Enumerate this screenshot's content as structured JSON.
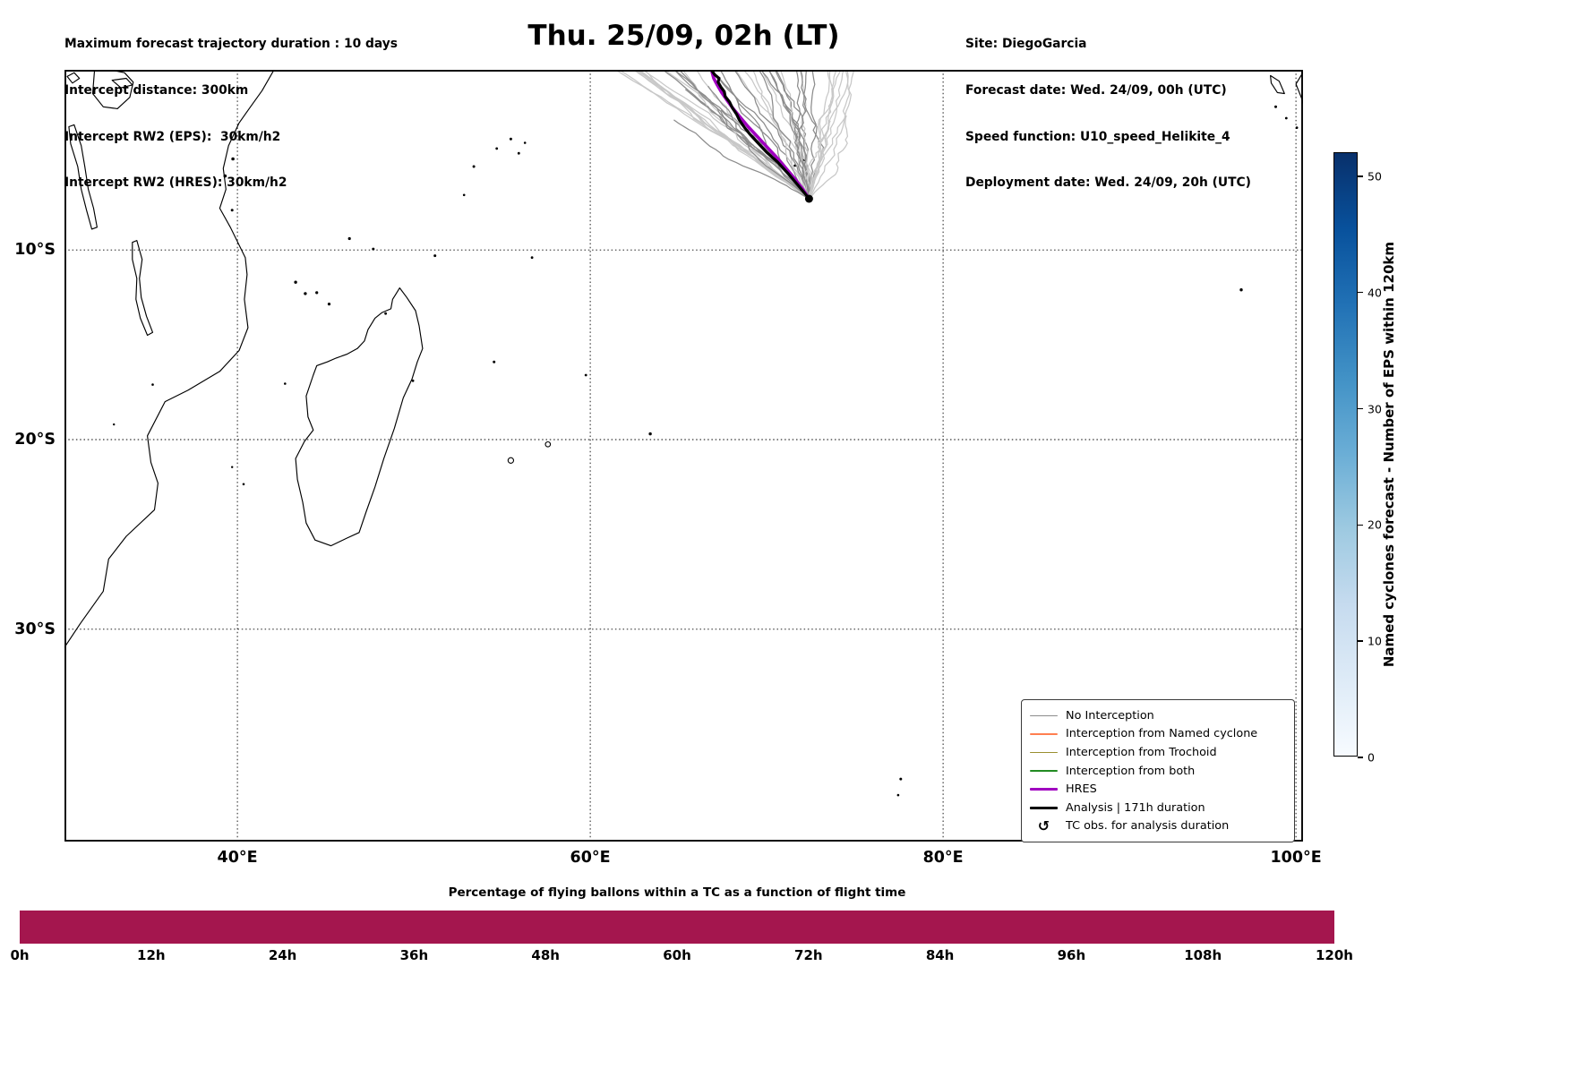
{
  "header": {
    "left_lines": [
      "Maximum forecast trajectory duration : 10 days",
      "Intercept distance: 300km",
      "Intercept RW2 (EPS):  30km/h2",
      "Intercept RW2 (HRES): 30km/h2"
    ],
    "title": "Thu. 25/09, 02h (LT)",
    "right_lines": [
      "Site: DiegoGarcia",
      "Forecast date: Wed. 24/09, 00h (UTC)",
      "Speed function: U10_speed_Helikite_4",
      "Deployment date: Wed. 24/09, 20h (UTC)"
    ]
  },
  "legend": {
    "items": [
      {
        "label": "No Interception",
        "type": "line",
        "color": "#8C8C8C",
        "width": 1.6
      },
      {
        "label": "Interception from Named cyclone",
        "type": "line",
        "color": "#FF7F50",
        "width": 1.6
      },
      {
        "label": "Interception from Trochoid",
        "type": "line",
        "color": "#9A8F2F",
        "width": 1.6
      },
      {
        "label": "Interception from both",
        "type": "line",
        "color": "#228B22",
        "width": 1.6
      },
      {
        "label": "HRES",
        "type": "line",
        "color": "#A000C0",
        "width": 3.6
      },
      {
        "label": "Analysis | 171h duration",
        "type": "line",
        "color": "#000000",
        "width": 3.4
      },
      {
        "label": "TC obs. for analysis duration",
        "type": "symbol",
        "symbol": "↺",
        "color": "#000000"
      }
    ]
  },
  "colorbar": {
    "label": "Named cyclones forecast - Number of EPS within 120km",
    "ticks": [
      0,
      10,
      20,
      30,
      40,
      50
    ],
    "vmin": 0,
    "vmax": 52,
    "stops": [
      "#f7fbff",
      "#deebf7",
      "#c6dbef",
      "#9ecae1",
      "#6baed6",
      "#4292c6",
      "#2171b5",
      "#08519c",
      "#08306b"
    ]
  },
  "bottom_chart": {
    "title": "Percentage of flying ballons within a TC as a function of flight time",
    "tick_labels": [
      "0h",
      "12h",
      "24h",
      "36h",
      "48h",
      "60h",
      "72h",
      "84h",
      "96h",
      "108h",
      "120h"
    ],
    "bar_color": "#A4164E",
    "value_percent": 100
  },
  "chart_data": {
    "type": "line",
    "title": "Thu. 25/09, 02h (LT)",
    "map_extent": {
      "lon": [
        30.2,
        100.4
      ],
      "lat": [
        -41.2,
        -0.5
      ]
    },
    "grid": {
      "lon": [
        40,
        60,
        80,
        100
      ],
      "lat": [
        -10,
        -20,
        -30
      ],
      "style": "dotted"
    },
    "xtick_labels": [
      "40°E",
      "60°E",
      "80°E",
      "100°E"
    ],
    "ytick_labels": [
      "10°S",
      "20°S",
      "30°S"
    ],
    "deployment_site": {
      "name": "DiegoGarcia",
      "lon": 72.4,
      "lat": -7.3
    },
    "analysis_track": {
      "color": "#000000",
      "width": 3.2,
      "points": [
        [
          72.4,
          -7.3
        ],
        [
          72.15,
          -7.0
        ],
        [
          71.7,
          -6.5
        ],
        [
          71.2,
          -5.95
        ],
        [
          70.6,
          -5.35
        ],
        [
          70.0,
          -4.85
        ],
        [
          69.5,
          -4.35
        ],
        [
          69.05,
          -3.9
        ],
        [
          68.75,
          -3.55
        ],
        [
          68.45,
          -3.15
        ],
        [
          68.3,
          -2.85
        ],
        [
          68.05,
          -2.5
        ],
        [
          67.9,
          -2.2
        ],
        [
          67.65,
          -1.9
        ],
        [
          67.6,
          -1.65
        ],
        [
          67.4,
          -1.4
        ],
        [
          67.25,
          -1.15
        ],
        [
          67.3,
          -0.95
        ],
        [
          67.05,
          -0.75
        ],
        [
          66.9,
          -0.55
        ],
        [
          66.8,
          -0.3
        ]
      ]
    },
    "hres_track": {
      "color": "#A000C0",
      "width": 3.6,
      "points": [
        [
          72.4,
          -7.3
        ],
        [
          72.05,
          -6.8
        ],
        [
          71.6,
          -6.25
        ],
        [
          71.1,
          -5.7
        ],
        [
          70.55,
          -5.1
        ],
        [
          70.0,
          -4.55
        ],
        [
          69.45,
          -4.0
        ],
        [
          68.95,
          -3.5
        ],
        [
          68.5,
          -3.0
        ],
        [
          68.1,
          -2.55
        ],
        [
          67.75,
          -2.1
        ],
        [
          67.45,
          -1.7
        ],
        [
          67.2,
          -1.3
        ],
        [
          67.0,
          -0.95
        ],
        [
          66.9,
          -0.6
        ],
        [
          66.95,
          -0.3
        ],
        [
          67.1,
          -0.05
        ]
      ]
    },
    "ensemble": {
      "count": 50,
      "seed": 11,
      "start": [
        72.4,
        -7.3
      ],
      "end_lon_range": [
        61,
        75.5
      ],
      "short_fraction": 0.13,
      "color_dark": "#8C8C8C",
      "color_light": "#C8C8C8",
      "width": 1.25
    },
    "coastlines": {
      "open_paths": [
        [
          [
            42.2,
            -0.3
          ],
          [
            41.4,
            -1.6
          ],
          [
            40.7,
            -2.5
          ],
          [
            40.1,
            -3.3
          ],
          [
            39.5,
            -4.5
          ],
          [
            39.2,
            -5.7
          ],
          [
            39.35,
            -6.8
          ],
          [
            39.0,
            -7.8
          ],
          [
            39.6,
            -8.8
          ],
          [
            40.45,
            -10.4
          ],
          [
            40.55,
            -11.3
          ],
          [
            40.4,
            -12.6
          ],
          [
            40.6,
            -14.1
          ],
          [
            40.1,
            -15.3
          ],
          [
            39.0,
            -16.4
          ],
          [
            37.2,
            -17.4
          ],
          [
            35.9,
            -18.0
          ],
          [
            34.9,
            -19.8
          ],
          [
            35.1,
            -21.2
          ],
          [
            35.5,
            -22.3
          ],
          [
            35.3,
            -23.7
          ],
          [
            33.7,
            -25.1
          ],
          [
            32.7,
            -26.3
          ],
          [
            32.4,
            -28.0
          ],
          [
            31.1,
            -29.7
          ],
          [
            30.1,
            -31.1
          ]
        ],
        [
          [
            100.45,
            -0.55
          ],
          [
            100.0,
            -1.25
          ],
          [
            100.3,
            -1.95
          ],
          [
            100.45,
            -2.35
          ]
        ]
      ],
      "closed_paths": [
        [
          [
            49.2,
            -12.0
          ],
          [
            49.6,
            -12.5
          ],
          [
            50.1,
            -13.2
          ],
          [
            50.3,
            -14.0
          ],
          [
            50.5,
            -15.2
          ],
          [
            50.2,
            -15.9
          ],
          [
            49.9,
            -16.8
          ],
          [
            49.4,
            -17.8
          ],
          [
            48.9,
            -19.4
          ],
          [
            48.3,
            -21.0
          ],
          [
            47.8,
            -22.5
          ],
          [
            47.3,
            -23.8
          ],
          [
            46.9,
            -24.9
          ],
          [
            46.2,
            -25.2
          ],
          [
            45.3,
            -25.6
          ],
          [
            44.4,
            -25.3
          ],
          [
            43.9,
            -24.4
          ],
          [
            43.7,
            -23.3
          ],
          [
            43.4,
            -22.1
          ],
          [
            43.3,
            -21.0
          ],
          [
            43.8,
            -20.1
          ],
          [
            44.3,
            -19.5
          ],
          [
            44.0,
            -18.8
          ],
          [
            43.9,
            -17.7
          ],
          [
            44.3,
            -16.6
          ],
          [
            44.5,
            -16.1
          ],
          [
            45.1,
            -15.9
          ],
          [
            45.6,
            -15.7
          ],
          [
            46.2,
            -15.5
          ],
          [
            46.8,
            -15.2
          ],
          [
            47.2,
            -14.8
          ],
          [
            47.4,
            -14.2
          ],
          [
            47.8,
            -13.6
          ],
          [
            48.2,
            -13.3
          ],
          [
            48.7,
            -13.1
          ],
          [
            48.8,
            -12.6
          ],
          [
            49.0,
            -12.3
          ]
        ],
        [
          [
            31.9,
            -0.55
          ],
          [
            32.8,
            -0.5
          ],
          [
            33.6,
            -0.65
          ],
          [
            34.1,
            -1.15
          ],
          [
            33.9,
            -1.95
          ],
          [
            33.2,
            -2.55
          ],
          [
            32.4,
            -2.45
          ],
          [
            31.8,
            -1.75
          ]
        ],
        [
          [
            30.75,
            -3.4
          ],
          [
            31.15,
            -4.5
          ],
          [
            31.35,
            -5.6
          ],
          [
            31.55,
            -6.8
          ],
          [
            31.85,
            -7.8
          ],
          [
            32.05,
            -8.8
          ],
          [
            31.75,
            -8.9
          ],
          [
            31.45,
            -7.9
          ],
          [
            31.15,
            -6.8
          ],
          [
            30.95,
            -5.6
          ],
          [
            30.55,
            -4.4
          ],
          [
            30.45,
            -3.5
          ]
        ],
        [
          [
            34.3,
            -9.5
          ],
          [
            34.6,
            -10.5
          ],
          [
            34.45,
            -11.5
          ],
          [
            34.55,
            -12.5
          ],
          [
            34.85,
            -13.5
          ],
          [
            35.2,
            -14.35
          ],
          [
            34.9,
            -14.5
          ],
          [
            34.5,
            -13.6
          ],
          [
            34.25,
            -12.6
          ],
          [
            34.3,
            -11.5
          ],
          [
            34.05,
            -10.5
          ],
          [
            34.05,
            -9.6
          ]
        ],
        [
          [
            32.9,
            -1.05
          ],
          [
            33.7,
            -0.95
          ],
          [
            34.05,
            -1.3
          ],
          [
            33.4,
            -1.45
          ]
        ],
        [
          [
            30.35,
            -0.85
          ],
          [
            30.75,
            -0.65
          ],
          [
            31.05,
            -0.95
          ],
          [
            30.65,
            -1.2
          ]
        ],
        [
          [
            98.55,
            -0.8
          ],
          [
            99.05,
            -1.1
          ],
          [
            99.35,
            -1.75
          ],
          [
            98.95,
            -1.7
          ],
          [
            98.6,
            -1.2
          ]
        ]
      ],
      "dots": [
        [
          43.3,
          -11.7,
          1.7
        ],
        [
          43.85,
          -12.3,
          1.7
        ],
        [
          44.5,
          -12.25,
          1.6
        ],
        [
          45.2,
          -12.85,
          1.6
        ],
        [
          46.35,
          -9.4,
          1.6
        ],
        [
          47.7,
          -9.95,
          1.5
        ],
        [
          51.2,
          -10.3,
          1.5
        ],
        [
          55.5,
          -4.15,
          1.5
        ],
        [
          53.4,
          -5.6,
          1.5
        ],
        [
          54.7,
          -4.65,
          1.4
        ],
        [
          55.95,
          -4.9,
          1.4
        ],
        [
          56.3,
          -4.35,
          1.3
        ],
        [
          52.85,
          -7.1,
          1.3
        ],
        [
          54.55,
          -15.9,
          1.5
        ],
        [
          59.75,
          -16.6,
          1.4
        ],
        [
          56.7,
          -10.4,
          1.4
        ],
        [
          57.6,
          -20.25,
          2.8
        ],
        [
          55.5,
          -21.1,
          3.1
        ],
        [
          63.4,
          -19.7,
          1.7
        ],
        [
          96.9,
          -12.1,
          1.7
        ],
        [
          77.6,
          -37.9,
          1.5
        ],
        [
          77.45,
          -38.75,
          1.3
        ],
        [
          71.6,
          -5.55,
          1.4
        ],
        [
          72.15,
          -5.25,
          1.4
        ],
        [
          98.85,
          -2.45,
          1.5
        ],
        [
          99.45,
          -3.05,
          1.4
        ],
        [
          100.05,
          -3.55,
          1.4
        ],
        [
          39.75,
          -5.2,
          1.8
        ],
        [
          39.3,
          -6.1,
          1.8
        ],
        [
          39.7,
          -7.9,
          1.5
        ],
        [
          48.4,
          -13.35,
          1.4
        ],
        [
          49.95,
          -16.9,
          1.4
        ],
        [
          42.7,
          -17.05,
          1.3
        ],
        [
          40.35,
          -22.35,
          1.3
        ],
        [
          39.7,
          -21.45,
          1.2
        ],
        [
          35.2,
          -17.1,
          1.3
        ],
        [
          33.0,
          -19.2,
          1.2
        ]
      ]
    },
    "bottom_bar": {
      "type": "bar",
      "x_hours": [
        0,
        120
      ],
      "percent": 100
    }
  }
}
